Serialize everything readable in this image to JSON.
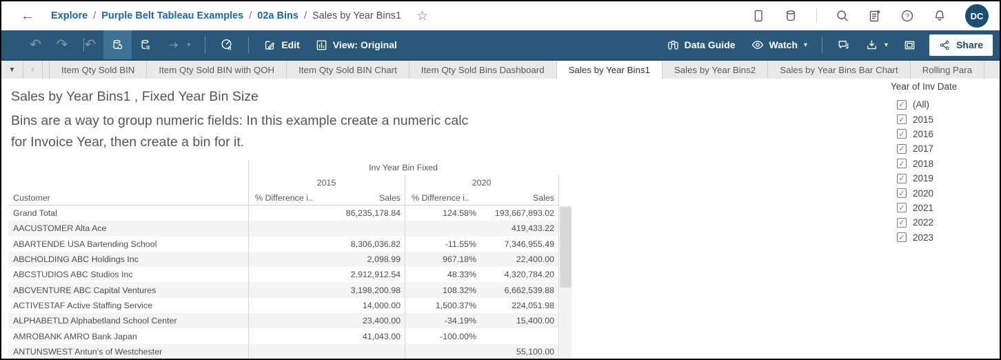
{
  "topbar": {
    "breadcrumb": {
      "links": [
        "Explore",
        "Purple Belt Tableau Examples",
        "02a Bins"
      ],
      "separator": "/",
      "current": "Sales by Year Bins1"
    },
    "avatar_initials": "DC"
  },
  "toolbar": {
    "edit_label": "Edit",
    "view_label": "View: Original",
    "data_guide_label": "Data Guide",
    "watch_label": "Watch",
    "share_label": "Share"
  },
  "tabs": {
    "items": [
      {
        "label": "Item Qty Sold BIN",
        "active": false
      },
      {
        "label": "Item Qty Sold BIN with QOH",
        "active": false
      },
      {
        "label": "Item Qty Sold BIN Chart",
        "active": false
      },
      {
        "label": "Item Qty Sold Bins Dashboard",
        "active": false
      },
      {
        "label": "Sales by Year Bins1",
        "active": true
      },
      {
        "label": "Sales by Year Bins2",
        "active": false
      },
      {
        "label": "Sales by Year Bins Bar Chart",
        "active": false
      },
      {
        "label": "Rolling Para",
        "active": false
      }
    ]
  },
  "sheet": {
    "title": "Sales by Year Bins1 , Fixed Year Bin Size",
    "subtitle": "Bins are a way to group numeric fields: In this example create a numeric calc\nfor Invoice Year, then create a bin for it."
  },
  "table": {
    "group_header": "Inv Year Bin Fixed",
    "year_groups": [
      "2015",
      "2020"
    ],
    "row_header": "Customer",
    "measure_headers": [
      "% Difference i..",
      "Sales"
    ],
    "rows": [
      {
        "customer": "Grand Total",
        "diff2015": "",
        "sales2015": "86,235,178.84",
        "diff2020": "124.58%",
        "sales2020": "193,667,893.02"
      },
      {
        "customer": "AACUSTOMER Alta Ace",
        "diff2015": "",
        "sales2015": "",
        "diff2020": "",
        "sales2020": "419,433.22"
      },
      {
        "customer": "ABARTENDE USA Bartending School",
        "diff2015": "",
        "sales2015": "8,306,036.82",
        "diff2020": "-11.55%",
        "sales2020": "7,346,955.49"
      },
      {
        "customer": "ABCHOLDING ABC Holdings Inc",
        "diff2015": "",
        "sales2015": "2,098.99",
        "diff2020": "967.18%",
        "sales2020": "22,400.00"
      },
      {
        "customer": "ABCSTUDIOS ABC Studios Inc",
        "diff2015": "",
        "sales2015": "2,912,912.54",
        "diff2020": "48.33%",
        "sales2020": "4,320,784.20"
      },
      {
        "customer": "ABCVENTURE ABC Capital Ventures",
        "diff2015": "",
        "sales2015": "3,198,200.98",
        "diff2020": "108.32%",
        "sales2020": "6,662,539.88"
      },
      {
        "customer": "ACTIVESTAF Active Staffing Service",
        "diff2015": "",
        "sales2015": "14,000.00",
        "diff2020": "1,500.37%",
        "sales2020": "224,051.98"
      },
      {
        "customer": "ALPHABETLD Alphabetland School Center",
        "diff2015": "",
        "sales2015": "23,400.00",
        "diff2020": "-34.19%",
        "sales2020": "15,400.00"
      },
      {
        "customer": "AMROBANK AMRO Bank Japan",
        "diff2015": "",
        "sales2015": "41,043.00",
        "diff2020": "-100.00%",
        "sales2020": ""
      },
      {
        "customer": "ANTUNSWEST Antun’s of Westchester",
        "diff2015": "",
        "sales2015": "",
        "diff2020": "",
        "sales2020": "55,100.00"
      }
    ]
  },
  "filter": {
    "title": "Year of Inv Date",
    "items": [
      {
        "label": "(All)",
        "checked": true
      },
      {
        "label": "2015",
        "checked": true
      },
      {
        "label": "2016",
        "checked": true
      },
      {
        "label": "2017",
        "checked": true
      },
      {
        "label": "2018",
        "checked": true
      },
      {
        "label": "2019",
        "checked": true
      },
      {
        "label": "2020",
        "checked": true
      },
      {
        "label": "2021",
        "checked": true
      },
      {
        "label": "2022",
        "checked": true
      },
      {
        "label": "2023",
        "checked": true
      }
    ]
  },
  "colors": {
    "toolbar_bg": "#2a5878",
    "toolbar_highlight": "#3d7195",
    "toolbar_edge": "#1c4a61",
    "link_blue": "#1a67b4",
    "avatar_bg": "#1a4f70",
    "tab_strip_bg": "#e9e9e9",
    "banding": "#f4f4f4",
    "share_text": "#21486b"
  }
}
